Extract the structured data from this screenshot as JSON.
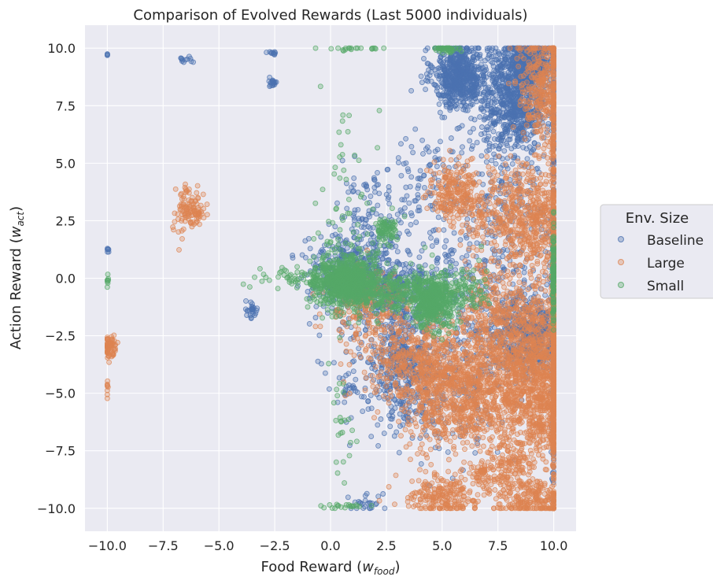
{
  "chart_data": {
    "type": "scatter",
    "title": "Comparison of Evolved Rewards (Last 5000 individuals)",
    "xlabel_main": "Food Reward (",
    "xlabel_symbol": "w",
    "xlabel_sub": "food",
    "xlabel_close": ")",
    "ylabel_main": "Action Reward (",
    "ylabel_symbol": "w",
    "ylabel_sub": "act",
    "ylabel_close": ")",
    "xlim": [
      -11,
      11
    ],
    "ylim": [
      -11,
      11
    ],
    "x_ticks": [
      -10,
      -7.5,
      -5,
      -2.5,
      0,
      2.5,
      5,
      7.5,
      10
    ],
    "x_tick_labels": [
      "−10.0",
      "−7.5",
      "−5.0",
      "−2.5",
      "0.0",
      "2.5",
      "5.0",
      "7.5",
      "10.0"
    ],
    "y_ticks": [
      10,
      7.5,
      5,
      2.5,
      0,
      -2.5,
      -5,
      -7.5,
      -10
    ],
    "y_tick_labels": [
      "10.0",
      "7.5",
      "5.0",
      "2.5",
      "0.0",
      "−2.5",
      "−5.0",
      "−7.5",
      "−10.0"
    ],
    "grid": true,
    "background": "#eaeaf2",
    "legend": {
      "title": "Env. Size",
      "placement": "right-center",
      "entries": [
        "Baseline",
        "Large",
        "Small"
      ]
    },
    "series": [
      {
        "name": "Baseline",
        "color": "#4c72b0",
        "clusters": [
          {
            "cx": 5.8,
            "cy": 8.8,
            "sx": 0.6,
            "sy": 0.7,
            "n": 650
          },
          {
            "cx": 8.3,
            "cy": 7.6,
            "sx": 0.7,
            "sy": 1.0,
            "n": 650
          },
          {
            "cx": 8.8,
            "cy": 9.4,
            "sx": 0.8,
            "sy": 0.5,
            "n": 450
          },
          {
            "cx": 8.8,
            "cy": -2.6,
            "sx": 0.9,
            "sy": 0.9,
            "n": 450
          },
          {
            "cx": 3.2,
            "cy": -3.8,
            "sx": 0.6,
            "sy": 1.2,
            "n": 320
          },
          {
            "cx": 2.5,
            "cy": -0.4,
            "sx": 1.2,
            "sy": 0.7,
            "n": 350
          },
          {
            "cx": 0.8,
            "cy": 0.6,
            "sx": 0.9,
            "sy": 0.8,
            "n": 250
          },
          {
            "cx": 5.5,
            "cy": -4.0,
            "sx": 1.3,
            "sy": 1.8,
            "n": 260
          },
          {
            "cx": 7.5,
            "cy": 0.0,
            "sx": 1.6,
            "sy": 1.4,
            "n": 200
          },
          {
            "cx": 4.5,
            "cy": 4.0,
            "sx": 1.2,
            "sy": 1.5,
            "n": 130
          },
          {
            "cx": 2.0,
            "cy": 3.0,
            "sx": 0.9,
            "sy": 1.0,
            "n": 90
          },
          {
            "cx": 8.0,
            "cy": 4.2,
            "sx": 1.2,
            "sy": 1.3,
            "n": 150
          },
          {
            "cx": -3.6,
            "cy": -1.4,
            "sx": 0.15,
            "sy": 0.15,
            "n": 25
          },
          {
            "cx": -2.6,
            "cy": 8.5,
            "sx": 0.12,
            "sy": 0.15,
            "n": 20
          },
          {
            "cx": -6.5,
            "cy": 9.5,
            "sx": 0.15,
            "sy": 0.05,
            "n": 12
          },
          {
            "cx": -2.6,
            "cy": 9.8,
            "sx": 0.12,
            "sy": 0.05,
            "n": 10
          },
          {
            "cx": -10.0,
            "cy": 1.2,
            "sx": 0.05,
            "sy": 0.1,
            "n": 6
          },
          {
            "cx": -10.0,
            "cy": 9.7,
            "sx": 0.05,
            "sy": 0.05,
            "n": 4
          },
          {
            "cx": 1.0,
            "cy": -4.8,
            "sx": 0.3,
            "sy": 0.3,
            "n": 20
          },
          {
            "cx": 1.6,
            "cy": -9.8,
            "sx": 0.6,
            "sy": 0.2,
            "n": 25
          },
          {
            "cx": 10.0,
            "cy": 0.0,
            "sx": 0.05,
            "sy": 6.0,
            "n": 200
          },
          {
            "cx": 2.0,
            "cy": -2.5,
            "sx": 1.5,
            "sy": 2.0,
            "n": 150
          }
        ]
      },
      {
        "name": "Large",
        "color": "#dd8452",
        "clusters": [
          {
            "cx": 9.2,
            "cy": -3.5,
            "sx": 0.9,
            "sy": 1.6,
            "n": 900
          },
          {
            "cx": 9.5,
            "cy": 8.2,
            "sx": 0.6,
            "sy": 1.3,
            "n": 350
          },
          {
            "cx": 9.0,
            "cy": 2.5,
            "sx": 0.8,
            "sy": 1.2,
            "n": 400
          },
          {
            "cx": 4.0,
            "cy": -3.6,
            "sx": 1.4,
            "sy": 0.9,
            "n": 500
          },
          {
            "cx": 5.8,
            "cy": -4.8,
            "sx": 1.2,
            "sy": 1.0,
            "n": 450
          },
          {
            "cx": 5.5,
            "cy": 3.8,
            "sx": 0.5,
            "sy": 0.6,
            "n": 200
          },
          {
            "cx": 7.3,
            "cy": 2.8,
            "sx": 1.0,
            "sy": 1.0,
            "n": 230
          },
          {
            "cx": 7.2,
            "cy": -2.0,
            "sx": 0.9,
            "sy": 1.3,
            "n": 300
          },
          {
            "cx": 5.0,
            "cy": -9.5,
            "sx": 0.8,
            "sy": 0.5,
            "n": 220
          },
          {
            "cx": 8.0,
            "cy": -8.2,
            "sx": 0.5,
            "sy": 0.6,
            "n": 150
          },
          {
            "cx": 9.0,
            "cy": -9.6,
            "sx": 0.9,
            "sy": 0.4,
            "n": 200
          },
          {
            "cx": 9.5,
            "cy": -6.0,
            "sx": 0.7,
            "sy": 1.0,
            "n": 300
          },
          {
            "cx": 6.8,
            "cy": -8.5,
            "sx": 0.3,
            "sy": 0.3,
            "n": 60
          },
          {
            "cx": 1.5,
            "cy": -1.2,
            "sx": 0.8,
            "sy": 0.8,
            "n": 180
          },
          {
            "cx": -6.4,
            "cy": 3.0,
            "sx": 0.35,
            "sy": 0.6,
            "n": 90
          },
          {
            "cx": -6.0,
            "cy": 2.8,
            "sx": 0.15,
            "sy": 0.2,
            "n": 25
          },
          {
            "cx": -9.9,
            "cy": -3.0,
            "sx": 0.15,
            "sy": 0.25,
            "n": 70
          },
          {
            "cx": -10.0,
            "cy": -4.8,
            "sx": 0.05,
            "sy": 0.2,
            "n": 8
          },
          {
            "cx": 10.0,
            "cy": 0.0,
            "sx": 0.05,
            "sy": 7.0,
            "n": 350
          },
          {
            "cx": 7.0,
            "cy": -5.5,
            "sx": 1.0,
            "sy": 1.0,
            "n": 250
          },
          {
            "cx": 4.5,
            "cy": -6.0,
            "sx": 0.8,
            "sy": 1.0,
            "n": 120
          }
        ]
      },
      {
        "name": "Small",
        "color": "#55a868",
        "clusters": [
          {
            "cx": 0.8,
            "cy": -0.2,
            "sx": 0.75,
            "sy": 0.55,
            "n": 900
          },
          {
            "cx": 4.6,
            "cy": -1.0,
            "sx": 0.55,
            "sy": 0.6,
            "n": 500
          },
          {
            "cx": 2.5,
            "cy": 2.1,
            "sx": 0.25,
            "sy": 0.3,
            "n": 80
          },
          {
            "cx": 3.2,
            "cy": -0.6,
            "sx": 0.8,
            "sy": 0.4,
            "n": 180
          },
          {
            "cx": 10.0,
            "cy": 0.0,
            "sx": 0.04,
            "sy": 1.2,
            "n": 100
          },
          {
            "cx": 5.2,
            "cy": 10.0,
            "sx": 0.3,
            "sy": 0.1,
            "n": 50
          },
          {
            "cx": 0.5,
            "cy": -7.0,
            "sx": 0.3,
            "sy": 1.6,
            "n": 25
          },
          {
            "cx": 0.8,
            "cy": 3.5,
            "sx": 0.6,
            "sy": 1.8,
            "n": 60
          },
          {
            "cx": -1.5,
            "cy": 0.0,
            "sx": 1.0,
            "sy": 0.2,
            "n": 60
          },
          {
            "cx": -10.0,
            "cy": -0.1,
            "sx": 0.05,
            "sy": 0.15,
            "n": 8
          },
          {
            "cx": 0.8,
            "cy": -9.9,
            "sx": 0.6,
            "sy": 0.05,
            "n": 20
          },
          {
            "cx": 1.0,
            "cy": 10.0,
            "sx": 0.8,
            "sy": 0.05,
            "n": 20
          },
          {
            "cx": 6.2,
            "cy": -0.5,
            "sx": 0.5,
            "sy": 0.6,
            "n": 70
          }
        ]
      }
    ]
  }
}
